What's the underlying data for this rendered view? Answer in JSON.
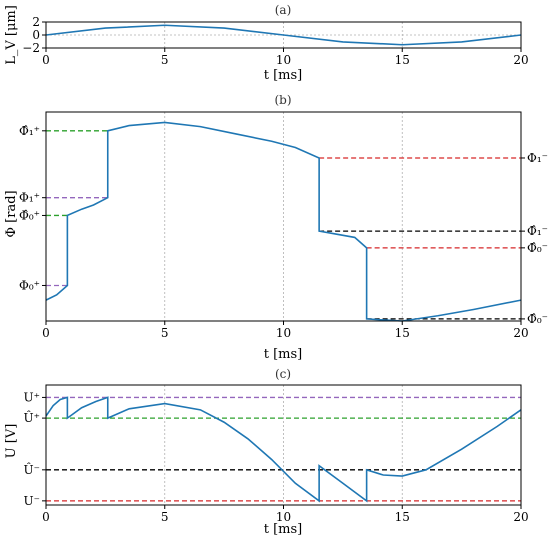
{
  "chart_data": [
    {
      "type": "line",
      "panel_label": "(a)",
      "xlabel": "t [ms]",
      "ylabel": "L_V [μm]",
      "xlim": [
        0,
        20
      ],
      "ylim": [
        -2,
        2
      ],
      "xticks": [
        "0",
        "5",
        "10",
        "15",
        "20"
      ],
      "yticks": [
        {
          "value": 2,
          "label": "2"
        },
        {
          "value": 0,
          "label": "0"
        },
        {
          "value": -2,
          "label": "−2"
        }
      ],
      "grid": true,
      "series": [
        {
          "x": [
            0,
            2.5,
            5,
            7.5,
            10,
            12.5,
            15,
            17.5,
            20
          ],
          "y": [
            0,
            1.06,
            1.5,
            1.06,
            0,
            -1.06,
            -1.5,
            -1.06,
            0
          ],
          "color": "#1f77b4"
        }
      ]
    },
    {
      "type": "line",
      "panel_label": "(b)",
      "xlabel": "t [ms]",
      "ylabel": "Φ [rad]",
      "xlim": [
        0,
        20
      ],
      "ylim": [
        0,
        10
      ],
      "xticks": [
        "0",
        "5",
        "10",
        "15",
        "20"
      ],
      "yticks_left": [
        {
          "value": 9.1,
          "label": "Φ̂₁⁺"
        },
        {
          "value": 5.9,
          "label": "Φ₁⁺"
        },
        {
          "value": 5.05,
          "label": "Φ̂₀⁺"
        },
        {
          "value": 1.7,
          "label": "Φ₀⁺"
        }
      ],
      "yticks_right": [
        {
          "value": 7.8,
          "label": "Φ₁⁻"
        },
        {
          "value": 4.3,
          "label": "Φ̂₁⁻"
        },
        {
          "value": 3.5,
          "label": "Φ̂₀⁻"
        },
        {
          "value": 0.1,
          "label": "Φ̂₀⁻"
        }
      ],
      "grid": true,
      "reference_lines": [
        {
          "y": 9.1,
          "x": [
            0,
            2.6
          ],
          "color": "#2ca02c"
        },
        {
          "y": 5.9,
          "x": [
            0,
            2.6
          ],
          "color": "#9467bd"
        },
        {
          "y": 5.05,
          "x": [
            0,
            0.9
          ],
          "color": "#2ca02c"
        },
        {
          "y": 1.7,
          "x": [
            0,
            0.9
          ],
          "color": "#9467bd"
        },
        {
          "y": 7.8,
          "x": [
            11.5,
            20
          ],
          "color": "#d62728"
        },
        {
          "y": 4.3,
          "x": [
            11.5,
            20
          ],
          "color": "#000000"
        },
        {
          "y": 3.5,
          "x": [
            13.5,
            20
          ],
          "color": "#d62728"
        },
        {
          "y": 0.1,
          "x": [
            13.5,
            20
          ],
          "color": "#000000"
        }
      ],
      "series": [
        {
          "x": [
            0,
            0.45,
            0.9,
            0.9,
            1.5,
            2.0,
            2.6,
            2.6,
            3.5,
            5,
            6.5,
            8,
            9.5,
            10.5,
            11.5,
            11.5,
            12,
            13,
            13.5,
            13.5,
            14.2,
            15,
            16.5,
            18,
            20
          ],
          "y": [
            1.0,
            1.25,
            1.7,
            5.05,
            5.35,
            5.55,
            5.9,
            9.1,
            9.35,
            9.5,
            9.3,
            8.95,
            8.6,
            8.3,
            7.8,
            4.3,
            4.2,
            4.0,
            3.5,
            0.1,
            0.05,
            0.0,
            0.25,
            0.55,
            1.0
          ],
          "color": "#1f77b4"
        }
      ]
    },
    {
      "type": "line",
      "panel_label": "(c)",
      "xlabel": "t [ms]",
      "ylabel": "U [V]",
      "xlim": [
        0,
        20
      ],
      "ylim": [
        -0.2,
        5.6
      ],
      "xticks": [
        "0",
        "5",
        "10",
        "15",
        "20"
      ],
      "yticks": [
        {
          "value": 5.0,
          "label": "U⁺"
        },
        {
          "value": 4.0,
          "label": "Û⁺"
        },
        {
          "value": 1.5,
          "label": "Û⁻"
        },
        {
          "value": 0.0,
          "label": "U⁻"
        }
      ],
      "grid": true,
      "reference_lines": [
        {
          "y": 5.0,
          "x": [
            0,
            20
          ],
          "color": "#9467bd"
        },
        {
          "y": 4.0,
          "x": [
            0,
            20
          ],
          "color": "#2ca02c"
        },
        {
          "y": 1.5,
          "x": [
            0,
            20
          ],
          "color": "#000000"
        },
        {
          "y": 0.0,
          "x": [
            0,
            20
          ],
          "color": "#d62728"
        }
      ],
      "series": [
        {
          "x": [
            0,
            0.3,
            0.6,
            0.9,
            0.9,
            1.5,
            2.1,
            2.6,
            2.6,
            3.5,
            5,
            6.5,
            7.5,
            8.5,
            9.5,
            10.5,
            11.5,
            11.5,
            12.5,
            13.5,
            13.5,
            14.2,
            15,
            16,
            17.5,
            19,
            20
          ],
          "y": [
            4.1,
            4.6,
            4.9,
            5.0,
            4.0,
            4.5,
            4.8,
            5.0,
            4.0,
            4.45,
            4.7,
            4.4,
            3.8,
            3.0,
            2.0,
            0.85,
            0.0,
            1.7,
            0.85,
            0.0,
            1.5,
            1.25,
            1.2,
            1.5,
            2.5,
            3.6,
            4.4
          ],
          "color": "#1f77b4"
        }
      ]
    }
  ]
}
